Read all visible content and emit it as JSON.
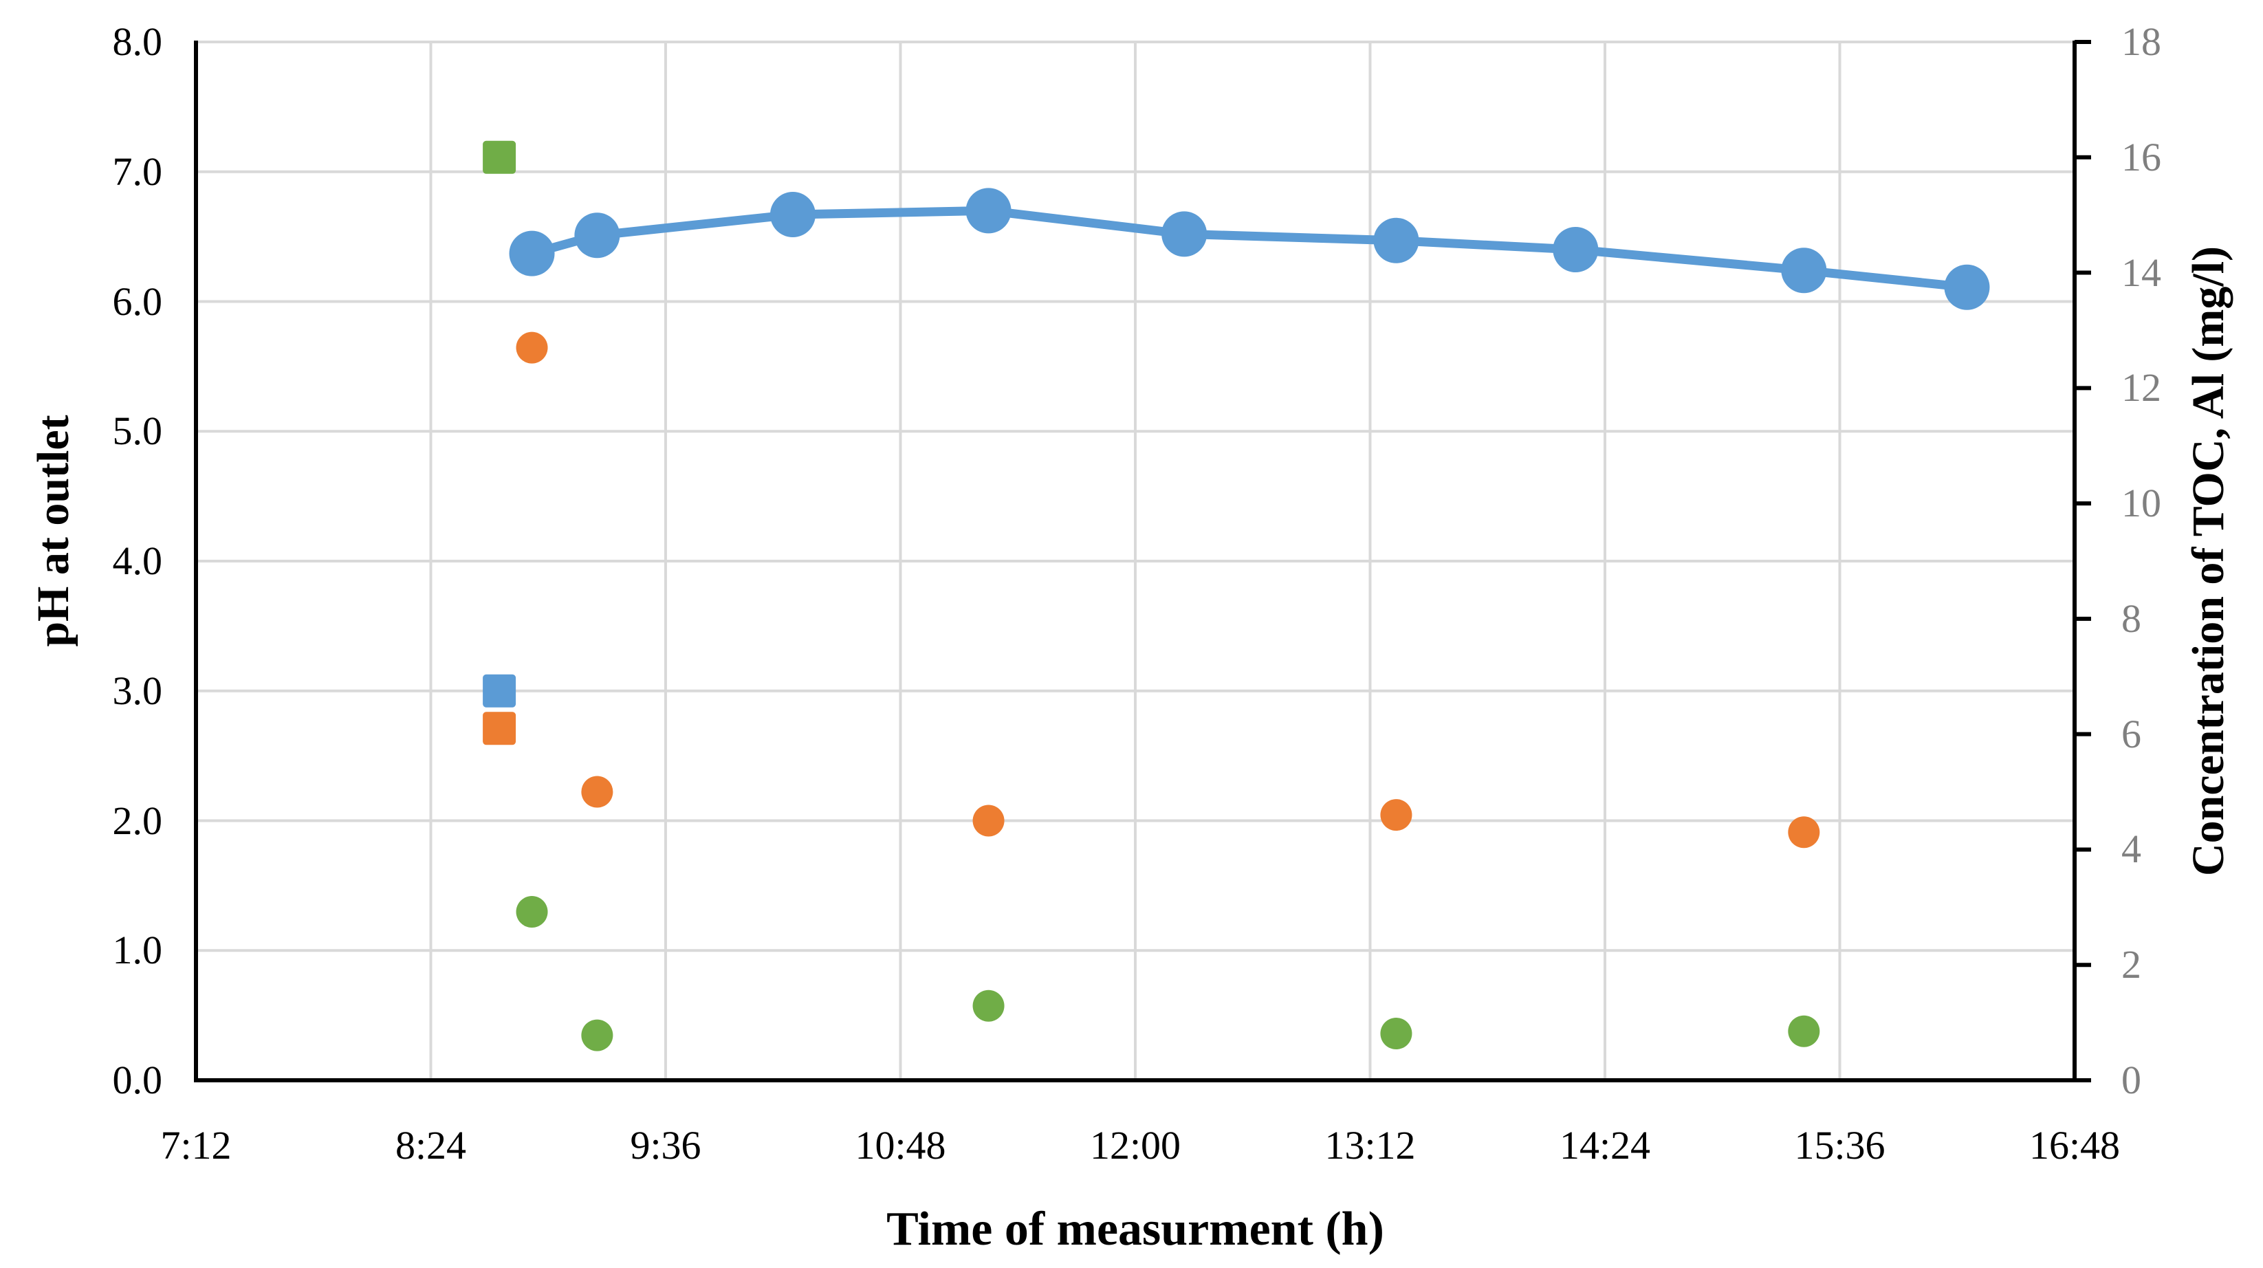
{
  "chart_data": {
    "type": "line+scatter",
    "title": "",
    "left_axis": {
      "title": "pH at outlet",
      "min": 0,
      "max": 8,
      "tick_labels": [
        "8.0",
        "7.0",
        "6.0",
        "5.0",
        "4.0",
        "3.0",
        "2.0",
        "1.0",
        "0.0"
      ],
      "tick_step": 1,
      "grid": true,
      "tick_label_color": "#000000"
    },
    "right_axis": {
      "title": "Concentration of TOC, Al (mg/l)",
      "min": 0,
      "max": 18,
      "tick_labels": [
        "18",
        "16",
        "14",
        "12",
        "10",
        "8",
        "6",
        "4",
        "2",
        "0"
      ],
      "tick_step": 2,
      "grid": false,
      "tick_label_color": "#7f7f7f"
    },
    "x_axis": {
      "title": "Time of measurment (h)",
      "tick_labels": [
        "7:12",
        "8:24",
        "9:36",
        "10:48",
        "12:00",
        "13:12",
        "14:24",
        "15:36",
        "16:48"
      ],
      "grid": true
    },
    "legend": "none",
    "series": [
      {
        "name": "blue-line-circles",
        "axis": "left",
        "type": "line",
        "marker": "circle",
        "marker_size": "large",
        "color": "#5B9BD5",
        "points": [
          {
            "x": "8:55",
            "y": 6.37
          },
          {
            "x": "9:15",
            "y": 6.51
          },
          {
            "x": "10:15",
            "y": 6.67
          },
          {
            "x": "11:15",
            "y": 6.7
          },
          {
            "x": "12:15",
            "y": 6.52
          },
          {
            "x": "13:20",
            "y": 6.47
          },
          {
            "x": "14:15",
            "y": 6.4
          },
          {
            "x": "15:25",
            "y": 6.24
          },
          {
            "x": "16:15",
            "y": 6.11
          }
        ]
      },
      {
        "name": "orange-circles",
        "axis": "right",
        "type": "scatter",
        "marker": "circle",
        "marker_size": "small",
        "color": "#ED7D31",
        "points": [
          {
            "x": "8:55",
            "y": 12.7
          },
          {
            "x": "9:15",
            "y": 5.0
          },
          {
            "x": "11:15",
            "y": 4.5
          },
          {
            "x": "13:20",
            "y": 4.6
          },
          {
            "x": "15:25",
            "y": 4.3
          }
        ]
      },
      {
        "name": "green-circles",
        "axis": "right",
        "type": "scatter",
        "marker": "circle",
        "marker_size": "small",
        "color": "#70AD47",
        "points": [
          {
            "x": "8:55",
            "y": 2.92
          },
          {
            "x": "9:15",
            "y": 0.78
          },
          {
            "x": "11:15",
            "y": 1.29
          },
          {
            "x": "13:20",
            "y": 0.81
          },
          {
            "x": "15:25",
            "y": 0.85
          }
        ]
      },
      {
        "name": "green-square",
        "axis": "right",
        "type": "scatter",
        "marker": "square",
        "marker_size": "square",
        "color": "#70AD47",
        "points": [
          {
            "x": "8:45",
            "y": 16.0
          }
        ]
      },
      {
        "name": "blue-square",
        "axis": "left",
        "type": "scatter",
        "marker": "square",
        "marker_size": "square",
        "color": "#5B9BD5",
        "points": [
          {
            "x": "8:45",
            "y": 3.0
          }
        ]
      },
      {
        "name": "orange-square",
        "axis": "right",
        "type": "scatter",
        "marker": "square",
        "marker_size": "square",
        "color": "#ED7D31",
        "points": [
          {
            "x": "8:45",
            "y": 6.1
          }
        ]
      }
    ],
    "style": {
      "grid_color": "#D9D9D9",
      "axis_color": "#000000",
      "background": "#FFFFFF"
    }
  }
}
